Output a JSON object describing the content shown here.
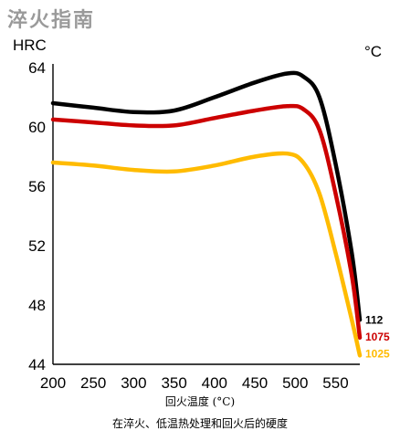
{
  "chart_data": {
    "type": "line",
    "title": "淬火指南",
    "ylabel": "HRC",
    "y2label": "°C",
    "xlabel": "回火温度 (°C)",
    "caption": "在淬火、低温热处理和回火后的硬度",
    "xlim": [
      200,
      580
    ],
    "ylim": [
      44,
      64
    ],
    "xticks": [
      200,
      250,
      300,
      350,
      400,
      450,
      500,
      550
    ],
    "yticks": [
      44,
      48,
      52,
      56,
      60,
      64
    ],
    "grid": false,
    "series": [
      {
        "name": "112",
        "label": "112",
        "color": "#000000",
        "points": [
          [
            200,
            61.6
          ],
          [
            250,
            61.3
          ],
          [
            300,
            61.0
          ],
          [
            350,
            61.1
          ],
          [
            400,
            62.0
          ],
          [
            450,
            63.0
          ],
          [
            490,
            63.6
          ],
          [
            510,
            63.4
          ],
          [
            530,
            62.0
          ],
          [
            550,
            57.5
          ],
          [
            570,
            51.5
          ],
          [
            580,
            47.0
          ]
        ]
      },
      {
        "name": "1075",
        "label": "1075",
        "color": "#cc0000",
        "points": [
          [
            200,
            60.5
          ],
          [
            250,
            60.3
          ],
          [
            300,
            60.1
          ],
          [
            350,
            60.1
          ],
          [
            400,
            60.6
          ],
          [
            450,
            61.1
          ],
          [
            490,
            61.4
          ],
          [
            510,
            61.2
          ],
          [
            530,
            59.8
          ],
          [
            550,
            55.5
          ],
          [
            570,
            50.0
          ],
          [
            580,
            45.8
          ]
        ]
      },
      {
        "name": "1025",
        "label": "1025",
        "color": "#ffbb00",
        "points": [
          [
            200,
            57.6
          ],
          [
            250,
            57.4
          ],
          [
            300,
            57.1
          ],
          [
            350,
            57.0
          ],
          [
            400,
            57.4
          ],
          [
            450,
            58.0
          ],
          [
            490,
            58.2
          ],
          [
            510,
            57.6
          ],
          [
            530,
            55.5
          ],
          [
            550,
            51.5
          ],
          [
            570,
            47.0
          ],
          [
            580,
            44.6
          ]
        ]
      }
    ]
  }
}
